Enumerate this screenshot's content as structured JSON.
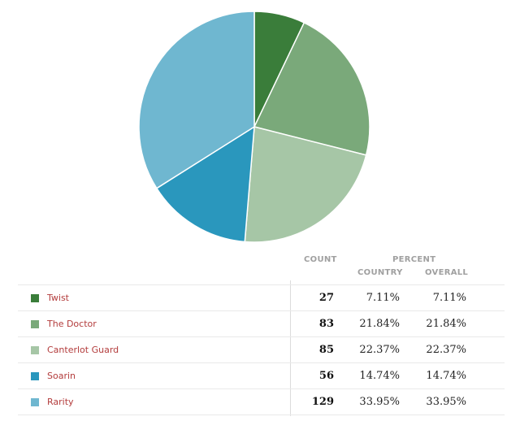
{
  "chart_data": {
    "type": "pie",
    "slices": [
      {
        "label": "Twist",
        "value": 27,
        "color": "#3a7d3a"
      },
      {
        "label": "The Doctor",
        "value": 83,
        "color": "#7aa97a"
      },
      {
        "label": "Canterlot Guard",
        "value": 85,
        "color": "#a6c6a6"
      },
      {
        "label": "Soarin",
        "value": 56,
        "color": "#2a97bd"
      },
      {
        "label": "Rarity",
        "value": 129,
        "color": "#6fb7d0"
      }
    ],
    "start_angle": "12 o'clock",
    "direction": "clockwise"
  },
  "table": {
    "headers": {
      "count": "COUNT",
      "percent": "PERCENT",
      "country": "COUNTRY",
      "overall": "OVERALL"
    },
    "rows": [
      {
        "name": "Twist",
        "count": "27",
        "country_pct": "7.11%",
        "overall_pct": "7.11%",
        "color": "#3a7d3a"
      },
      {
        "name": "The Doctor",
        "count": "83",
        "country_pct": "21.84%",
        "overall_pct": "21.84%",
        "color": "#7aa97a"
      },
      {
        "name": "Canterlot Guard",
        "count": "85",
        "country_pct": "22.37%",
        "overall_pct": "22.37%",
        "color": "#a6c6a6"
      },
      {
        "name": "Soarin",
        "count": "56",
        "country_pct": "14.74%",
        "overall_pct": "14.74%",
        "color": "#2a97bd"
      },
      {
        "name": "Rarity",
        "count": "129",
        "country_pct": "33.95%",
        "overall_pct": "33.95%",
        "color": "#6fb7d0"
      }
    ]
  }
}
